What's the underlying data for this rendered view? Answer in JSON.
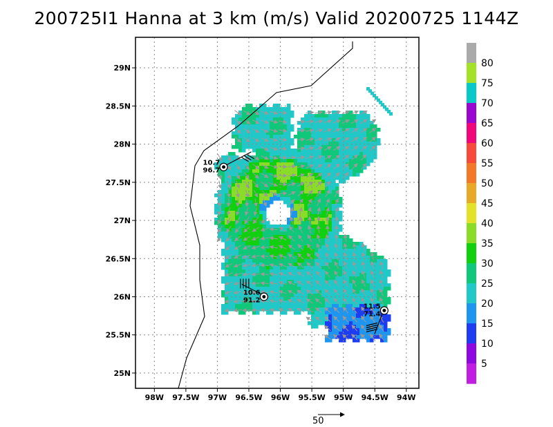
{
  "title": "200725I1 Hanna at 3 km (m/s) Valid 20200725 1144Z",
  "map": {
    "lon_min": -98.3,
    "lon_max": -93.8,
    "lat_min": 24.8,
    "lat_max": 29.4,
    "x_ticks": [
      "98W",
      "97.5W",
      "97W",
      "96.5W",
      "96W",
      "95.5W",
      "95W",
      "94.5W",
      "94W"
    ],
    "y_ticks": [
      "29N",
      "28.5N",
      "28N",
      "27.5N",
      "27N",
      "26.5N",
      "26N",
      "25.5N",
      "25N"
    ],
    "grid": "dotted"
  },
  "colorbar": {
    "labels": [
      "80",
      "75",
      "70",
      "65",
      "60",
      "55",
      "50",
      "45",
      "40",
      "35",
      "30",
      "25",
      "20",
      "15",
      "10",
      "5"
    ],
    "colors": [
      "#aaaaaa",
      "#a4e22a",
      "#08c8c8",
      "#9a08d0",
      "#f0087a",
      "#f84a3a",
      "#f4782a",
      "#e8a828",
      "#e2e22a",
      "#8adc28",
      "#10d010",
      "#10c87a",
      "#20c8c8",
      "#1e96f0",
      "#1e3cf0",
      "#8e08e0",
      "#c01ee0"
    ]
  },
  "stations": [
    {
      "speed": "10.7",
      "dir": "96.7",
      "lon": -96.9,
      "lat": 27.7
    },
    {
      "speed": "10.6",
      "dir": "91.2",
      "lon": -96.26,
      "lat": 26.0
    },
    {
      "speed": "11.5",
      "dir": "71.4",
      "lon": -94.35,
      "lat": 25.82
    }
  ],
  "legend": {
    "reference_arrow_label": "50"
  }
}
